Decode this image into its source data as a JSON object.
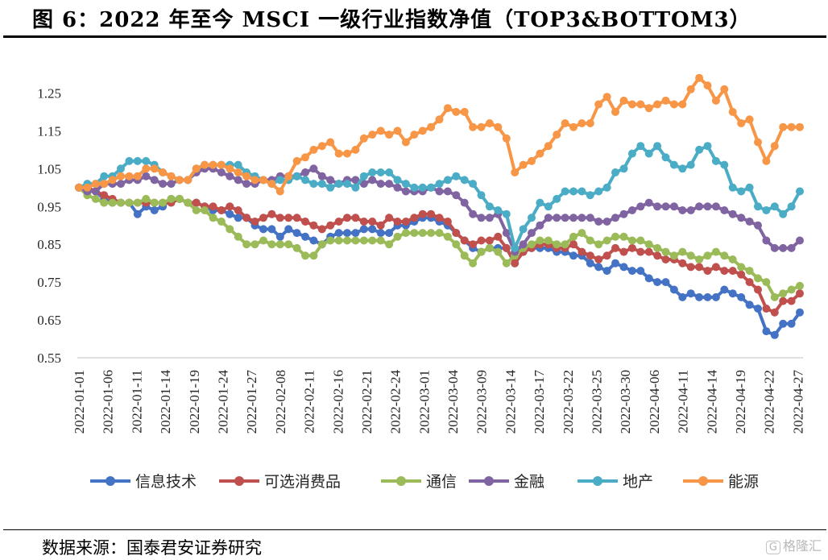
{
  "title": "图 6：2022 年至今 MSCI 一级行业指数净值（TOP3&BOTTOM3）",
  "source": "数据来源：国泰君安证券研究",
  "watermark": "格隆汇",
  "chart_data": {
    "type": "line",
    "title": "",
    "xlabel": "",
    "ylabel": "",
    "ylim": [
      0.55,
      1.3
    ],
    "yticks": [
      0.55,
      0.65,
      0.75,
      0.85,
      0.95,
      1.05,
      1.15,
      1.25
    ],
    "ytick_labels": [
      "0.55",
      "0.65",
      "0.75",
      "0.85",
      "0.95",
      "1.05",
      "1.15",
      "1.25"
    ],
    "grid": false,
    "legend": "bottom",
    "markers": true,
    "xtick_labels": [
      "2022-01-01",
      "2022-01-06",
      "2022-01-11",
      "2022-01-14",
      "2022-01-19",
      "2022-01-24",
      "2022-01-27",
      "2022-02-08",
      "2022-02-11",
      "2022-02-16",
      "2022-02-21",
      "2022-02-24",
      "2022-03-01",
      "2022-03-04",
      "2022-03-09",
      "2022-03-14",
      "2022-03-17",
      "2022-03-22",
      "2022-03-25",
      "2022-03-30",
      "2022-04-06",
      "2022-04-11",
      "2022-04-14",
      "2022-04-19",
      "2022-04-22",
      "2022-04-27"
    ],
    "series": [
      {
        "name": "信息技术",
        "color": "#4472C4",
        "values": [
          1.0,
          1.0,
          0.99,
          0.97,
          0.96,
          0.96,
          0.96,
          0.93,
          0.95,
          0.94,
          0.95,
          0.97,
          0.97,
          0.96,
          0.96,
          0.95,
          0.94,
          0.94,
          0.93,
          0.92,
          0.92,
          0.9,
          0.89,
          0.89,
          0.87,
          0.89,
          0.88,
          0.87,
          0.86,
          0.85,
          0.87,
          0.88,
          0.88,
          0.88,
          0.89,
          0.89,
          0.88,
          0.88,
          0.9,
          0.9,
          0.91,
          0.92,
          0.92,
          0.91,
          0.9,
          0.88,
          0.86,
          0.84,
          0.83,
          0.84,
          0.84,
          0.84,
          0.8,
          0.83,
          0.84,
          0.84,
          0.84,
          0.83,
          0.83,
          0.82,
          0.82,
          0.8,
          0.79,
          0.78,
          0.8,
          0.79,
          0.78,
          0.78,
          0.76,
          0.75,
          0.75,
          0.73,
          0.71,
          0.72,
          0.71,
          0.71,
          0.71,
          0.73,
          0.72,
          0.71,
          0.69,
          0.68,
          0.62,
          0.61,
          0.64,
          0.64,
          0.67
        ]
      },
      {
        "name": "可选消费品",
        "color": "#C0504D",
        "values": [
          1.0,
          1.0,
          0.99,
          0.98,
          0.97,
          0.96,
          0.96,
          0.96,
          0.96,
          0.96,
          0.96,
          0.96,
          0.97,
          0.96,
          0.96,
          0.95,
          0.95,
          0.94,
          0.95,
          0.94,
          0.92,
          0.91,
          0.92,
          0.93,
          0.92,
          0.92,
          0.92,
          0.91,
          0.9,
          0.89,
          0.9,
          0.91,
          0.92,
          0.92,
          0.91,
          0.91,
          0.9,
          0.92,
          0.91,
          0.91,
          0.92,
          0.93,
          0.93,
          0.92,
          0.91,
          0.88,
          0.86,
          0.85,
          0.86,
          0.86,
          0.87,
          0.84,
          0.8,
          0.83,
          0.84,
          0.85,
          0.85,
          0.84,
          0.84,
          0.85,
          0.83,
          0.82,
          0.81,
          0.82,
          0.84,
          0.83,
          0.84,
          0.83,
          0.83,
          0.82,
          0.81,
          0.81,
          0.8,
          0.79,
          0.79,
          0.78,
          0.79,
          0.78,
          0.78,
          0.77,
          0.75,
          0.73,
          0.68,
          0.67,
          0.7,
          0.7,
          0.72
        ]
      },
      {
        "name": "通信",
        "color": "#9BBB59",
        "values": [
          1.0,
          0.98,
          0.97,
          0.96,
          0.96,
          0.96,
          0.96,
          0.96,
          0.97,
          0.96,
          0.96,
          0.97,
          0.97,
          0.96,
          0.94,
          0.94,
          0.92,
          0.91,
          0.89,
          0.87,
          0.85,
          0.85,
          0.86,
          0.85,
          0.85,
          0.85,
          0.84,
          0.82,
          0.82,
          0.85,
          0.86,
          0.86,
          0.86,
          0.86,
          0.86,
          0.86,
          0.86,
          0.85,
          0.87,
          0.88,
          0.88,
          0.88,
          0.88,
          0.88,
          0.87,
          0.85,
          0.82,
          0.8,
          0.83,
          0.84,
          0.83,
          0.8,
          0.82,
          0.84,
          0.85,
          0.86,
          0.86,
          0.85,
          0.85,
          0.87,
          0.88,
          0.86,
          0.85,
          0.86,
          0.87,
          0.87,
          0.86,
          0.86,
          0.85,
          0.84,
          0.83,
          0.82,
          0.83,
          0.82,
          0.81,
          0.82,
          0.83,
          0.82,
          0.81,
          0.79,
          0.78,
          0.76,
          0.75,
          0.71,
          0.72,
          0.73,
          0.74
        ]
      },
      {
        "name": "金融",
        "color": "#8064A2",
        "values": [
          1.0,
          0.99,
          0.99,
          1.01,
          1.01,
          1.01,
          1.02,
          1.02,
          1.03,
          1.02,
          1.01,
          1.01,
          1.02,
          1.02,
          1.04,
          1.05,
          1.05,
          1.04,
          1.03,
          1.02,
          1.01,
          1.01,
          1.02,
          1.02,
          1.03,
          1.03,
          1.03,
          1.04,
          1.05,
          1.03,
          1.02,
          1.01,
          1.02,
          1.02,
          1.01,
          1.02,
          1.01,
          1.01,
          1.0,
          0.99,
          0.99,
          0.99,
          1.0,
          0.99,
          0.99,
          0.98,
          0.96,
          0.93,
          0.92,
          0.92,
          0.93,
          0.88,
          0.83,
          0.85,
          0.88,
          0.9,
          0.92,
          0.92,
          0.92,
          0.92,
          0.92,
          0.92,
          0.91,
          0.91,
          0.92,
          0.93,
          0.94,
          0.95,
          0.96,
          0.95,
          0.95,
          0.95,
          0.94,
          0.94,
          0.95,
          0.95,
          0.95,
          0.94,
          0.93,
          0.92,
          0.91,
          0.9,
          0.86,
          0.84,
          0.84,
          0.84,
          0.86
        ]
      },
      {
        "name": "地产",
        "color": "#4BACC6",
        "values": [
          1.0,
          1.01,
          1.01,
          1.03,
          1.03,
          1.05,
          1.07,
          1.07,
          1.07,
          1.06,
          1.04,
          1.03,
          1.02,
          1.02,
          1.05,
          1.06,
          1.06,
          1.06,
          1.06,
          1.06,
          1.04,
          1.03,
          1.02,
          1.01,
          1.02,
          1.02,
          1.03,
          1.02,
          1.01,
          1.01,
          1.0,
          1.01,
          1.01,
          1.0,
          1.03,
          1.04,
          1.04,
          1.04,
          1.02,
          1.01,
          1.0,
          1.0,
          1.0,
          1.01,
          1.02,
          1.03,
          1.02,
          1.01,
          0.98,
          0.95,
          0.94,
          0.93,
          0.84,
          0.89,
          0.92,
          0.96,
          0.95,
          0.97,
          0.99,
          0.99,
          0.99,
          0.98,
          0.99,
          1.0,
          1.04,
          1.05,
          1.09,
          1.11,
          1.09,
          1.11,
          1.08,
          1.06,
          1.05,
          1.06,
          1.1,
          1.11,
          1.07,
          1.06,
          1.0,
          0.99,
          1.0,
          0.95,
          0.94,
          0.95,
          0.93,
          0.95,
          0.99
        ]
      },
      {
        "name": "能源",
        "color": "#F79646",
        "values": [
          1.0,
          1.0,
          1.01,
          1.01,
          1.02,
          1.03,
          1.03,
          1.03,
          1.05,
          1.05,
          1.04,
          1.03,
          1.02,
          1.02,
          1.05,
          1.06,
          1.06,
          1.06,
          1.05,
          1.04,
          1.03,
          1.02,
          1.02,
          1.01,
          0.99,
          1.03,
          1.07,
          1.08,
          1.1,
          1.11,
          1.12,
          1.09,
          1.09,
          1.1,
          1.13,
          1.14,
          1.15,
          1.14,
          1.15,
          1.12,
          1.14,
          1.15,
          1.16,
          1.18,
          1.21,
          1.2,
          1.2,
          1.16,
          1.16,
          1.17,
          1.16,
          1.13,
          1.04,
          1.06,
          1.07,
          1.09,
          1.11,
          1.14,
          1.17,
          1.16,
          1.17,
          1.17,
          1.22,
          1.24,
          1.2,
          1.23,
          1.22,
          1.22,
          1.21,
          1.22,
          1.23,
          1.22,
          1.22,
          1.26,
          1.29,
          1.27,
          1.23,
          1.26,
          1.2,
          1.17,
          1.18,
          1.12,
          1.07,
          1.11,
          1.16,
          1.16,
          1.16
        ]
      }
    ]
  }
}
